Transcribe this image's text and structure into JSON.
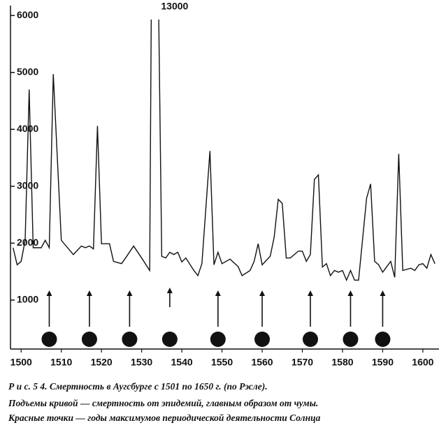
{
  "chart_data": {
    "type": "line",
    "x": [
      1498,
      1499,
      1500,
      1501,
      1502,
      1503,
      1505,
      1506,
      1507,
      1508,
      1510,
      1513,
      1515,
      1516,
      1517,
      1518,
      1519,
      1520,
      1522,
      1523,
      1525,
      1526,
      1528,
      1530,
      1532,
      1533,
      1535,
      1536,
      1537,
      1538,
      1539,
      1540,
      1541,
      1543,
      1544,
      1545,
      1547,
      1548,
      1549,
      1550,
      1552,
      1554,
      1555,
      1557,
      1558,
      1559,
      1560,
      1562,
      1563,
      1564,
      1565,
      1566,
      1567,
      1569,
      1570,
      1571,
      1572,
      1573,
      1574,
      1575,
      1576,
      1577,
      1578,
      1579,
      1580,
      1581,
      1582,
      1583,
      1584,
      1586,
      1587,
      1588,
      1589,
      1590,
      1592,
      1593,
      1594,
      1595,
      1597,
      1598,
      1599,
      1600,
      1601,
      1602,
      1603
    ],
    "series": [
      {
        "color": "#111111",
        "values": [
          1920,
          1620,
          1680,
          2050,
          4700,
          1920,
          1920,
          2050,
          1920,
          4970,
          2050,
          1800,
          1950,
          1920,
          1950,
          1900,
          4060,
          1990,
          1990,
          1680,
          1640,
          1740,
          1950,
          1740,
          1520,
          13000,
          1770,
          1740,
          1840,
          1800,
          1840,
          1670,
          1740,
          1520,
          1430,
          1640,
          3620,
          1620,
          1840,
          1640,
          1720,
          1590,
          1430,
          1520,
          1680,
          1990,
          1620,
          1770,
          2110,
          2770,
          2700,
          1740,
          1740,
          1860,
          1860,
          1680,
          1800,
          3120,
          3200,
          1580,
          1640,
          1430,
          1520,
          1490,
          1520,
          1350,
          1520,
          1350,
          1350,
          2790,
          3040,
          1680,
          1620,
          1490,
          1680,
          1400,
          3570,
          1520,
          1560,
          1520,
          1620,
          1640,
          1560,
          1800,
          1640
        ],
        "value_labels": [
          null,
          null,
          null,
          null,
          null,
          null,
          null,
          null,
          null,
          null,
          null,
          null,
          null,
          null,
          null,
          null,
          null,
          null,
          null,
          null,
          null,
          null,
          null,
          null,
          null,
          "13000",
          null,
          null,
          null,
          null,
          null,
          null,
          null,
          null,
          null,
          null,
          null,
          null,
          null,
          null,
          null,
          null,
          null,
          null,
          null,
          null,
          null,
          null,
          null,
          null,
          null,
          null,
          null,
          null,
          null,
          null,
          null,
          null,
          null,
          null,
          null,
          null,
          null,
          null,
          null,
          null,
          null,
          null,
          null,
          null,
          null,
          null,
          null,
          null,
          null,
          null,
          null,
          null,
          null,
          null,
          null,
          null,
          null,
          null,
          null
        ]
      }
    ],
    "markers": {
      "x": [
        1507,
        1517,
        1527,
        1537,
        1549,
        1560,
        1572,
        1582,
        1590
      ],
      "color": "#111111"
    },
    "xlim": [
      1497,
      1603.5
    ],
    "xticks": [
      1500,
      1510,
      1520,
      1530,
      1540,
      1550,
      1560,
      1570,
      1580,
      1590,
      1600
    ],
    "ylim": [
      140,
      6150
    ],
    "yticks": [
      1000,
      2000,
      3000,
      4000,
      5000,
      6000
    ]
  },
  "caption": [
    "Р и с. 5 4.  Смертность в Аугсбурге с 1501 по 1650 г. (по Рэсле).",
    "Подъемы кривой — смертность от эпидемий, главным образом от чумы.",
    "Красные точки — годы максимумов периодической деятельности Солнца"
  ]
}
